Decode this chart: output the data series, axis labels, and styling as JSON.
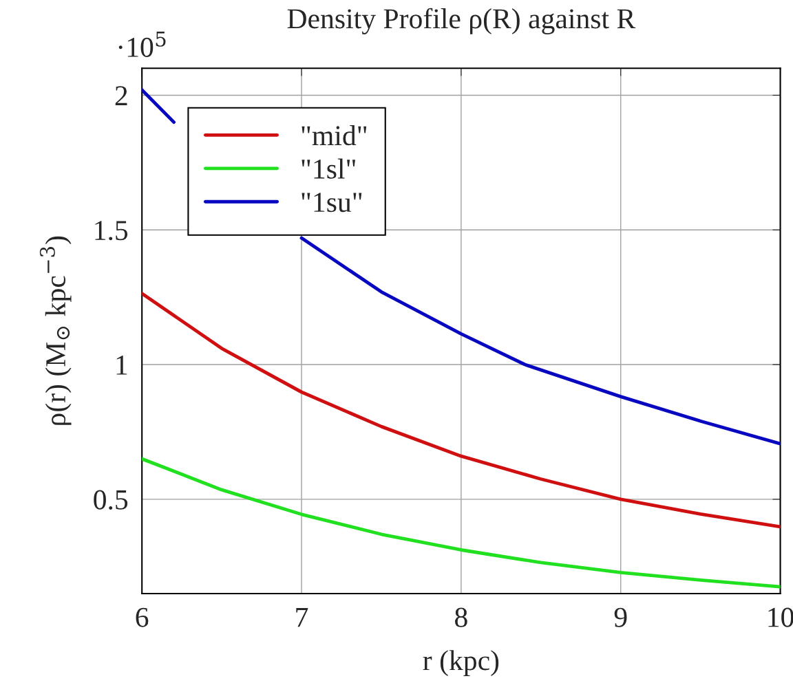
{
  "chart_data": {
    "type": "line",
    "title": "Density Profile ρ(R) against R",
    "xlabel": "r (kpc)",
    "ylabel": "ρ(r) (M$_{⊙}$ kpc$^{−3}$)",
    "annotations": [
      "·10$^{5}$"
    ],
    "xlim": [
      6,
      10
    ],
    "xticks": [
      6,
      7,
      8,
      9,
      10
    ],
    "ylim": [
      0.15,
      2.1
    ],
    "yticks": [
      0.5,
      1,
      1.5,
      2
    ],
    "grid": true,
    "legend": "top left",
    "line_style": "solid",
    "marker": "none",
    "series": [
      {
        "name": "\"mid\"",
        "color": "#d01010",
        "x": [
          6,
          6.5,
          7,
          7.5,
          8,
          8.5,
          9,
          9.5,
          10
        ],
        "values": [
          1.264,
          1.06,
          0.898,
          0.77,
          0.66,
          0.575,
          0.5,
          0.445,
          0.398
        ]
      },
      {
        "name": "\"1sl\"",
        "color": "#20e020",
        "x": [
          6,
          6.5,
          7,
          7.5,
          8,
          8.5,
          9,
          9.5,
          10
        ],
        "values": [
          0.65,
          0.535,
          0.444,
          0.37,
          0.312,
          0.265,
          0.228,
          0.2,
          0.175
        ]
      },
      {
        "name": "\"1su\"",
        "color": "#0808c0",
        "x": [
          6,
          6.2,
          6.5,
          7,
          7.5,
          8,
          8.4,
          9,
          9.5,
          10
        ],
        "values": [
          2.02,
          1.9,
          null,
          1.47,
          1.27,
          1.114,
          1.0,
          0.881,
          0.79,
          0.706
        ]
      }
    ]
  }
}
